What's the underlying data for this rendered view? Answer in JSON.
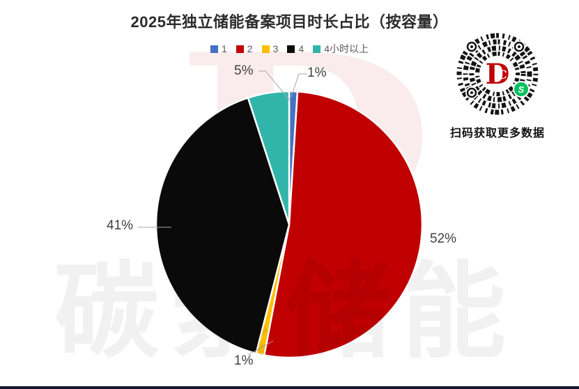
{
  "page": {
    "title": "2025年独立储能备案项目时长占比（按容量）"
  },
  "chart_data": {
    "type": "pie",
    "title": "2025年独立储能备案项目时长占比（按容量）",
    "unit": "percent",
    "direction": "clockwise",
    "start_angle_deg": 0,
    "legend_position": "top",
    "slices": [
      {
        "name": "1",
        "value": 1,
        "label": "1%",
        "color": "#4472C4"
      },
      {
        "name": "2",
        "value": 52,
        "label": "52%",
        "color": "#C00000"
      },
      {
        "name": "3",
        "value": 1,
        "label": "1%",
        "color": "#FFC000"
      },
      {
        "name": "4",
        "value": 41,
        "label": "41%",
        "color": "#0A0A0A"
      },
      {
        "name": "4小时以上",
        "value": 5,
        "label": "5%",
        "color": "#31B5AB"
      }
    ]
  },
  "qr": {
    "caption": "扫码获取更多数据",
    "logo_d": "D",
    "logo_c": "C",
    "miniprogram_glyph": "S"
  },
  "watermarks": {
    "letter": "D",
    "text": "碳索储能"
  }
}
